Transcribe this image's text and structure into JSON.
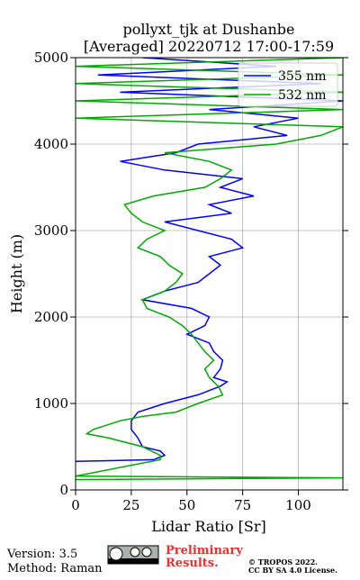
{
  "chart_data": {
    "type": "line",
    "title": [
      "pollyxt_tjk at Dushanbe",
      "[Averaged] 20220712 17:00-17:59"
    ],
    "xlabel": "Lidar Ratio [Sr]",
    "ylabel": "Height (m)",
    "xlim": [
      0,
      120
    ],
    "ylim": [
      0,
      5000
    ],
    "xticks": [
      0,
      25,
      50,
      75,
      100
    ],
    "yticks": [
      0,
      1000,
      2000,
      3000,
      4000,
      5000
    ],
    "grid": true,
    "legend": "upper right",
    "series": [
      {
        "name": "355 nm",
        "color": "#0000ff",
        "y": [
          330,
          350,
          400,
          450,
          500,
          600,
          700,
          800,
          900,
          1000,
          1100,
          1200,
          1250,
          1300,
          1400,
          1500,
          1600,
          1700,
          1800,
          1900,
          2000,
          2100,
          2200,
          2300,
          2400,
          2500,
          2600,
          2700,
          2800,
          2900,
          3000,
          3100,
          3200,
          3300,
          3400,
          3500,
          3600,
          3700,
          3800,
          3900,
          4000,
          4100,
          4200,
          4300,
          4400,
          4500,
          4600,
          4700,
          4800,
          4900,
          5000
        ],
        "x": [
          0,
          35,
          40,
          38,
          30,
          28,
          25,
          25,
          28,
          40,
          55,
          65,
          68,
          62,
          65,
          66,
          62,
          60,
          50,
          58,
          60,
          52,
          30,
          40,
          55,
          60,
          65,
          60,
          75,
          70,
          55,
          40,
          70,
          60,
          80,
          65,
          75,
          40,
          20,
          45,
          55,
          95,
          80,
          100,
          60,
          120,
          20,
          110,
          10,
          90,
          30
        ]
      },
      {
        "name": "532 nm",
        "color": "#00aa00",
        "y": [
          120,
          140,
          160,
          350,
          400,
          500,
          600,
          650,
          700,
          800,
          850,
          900,
          1000,
          1100,
          1200,
          1300,
          1400,
          1500,
          1600,
          1700,
          1800,
          1900,
          2000,
          2100,
          2200,
          2300,
          2400,
          2500,
          2600,
          2700,
          2800,
          2900,
          3000,
          3100,
          3200,
          3300,
          3400,
          3500,
          3600,
          3700,
          3800,
          3900,
          4000,
          4100,
          4200,
          4300,
          4400,
          4500,
          4600,
          4700,
          4800,
          4900,
          5000
        ],
        "x": [
          0,
          120,
          0,
          38,
          38,
          30,
          15,
          5,
          8,
          20,
          30,
          45,
          55,
          66,
          64,
          60,
          58,
          62,
          58,
          55,
          52,
          48,
          42,
          32,
          30,
          40,
          45,
          48,
          42,
          38,
          28,
          32,
          40,
          30,
          25,
          22,
          35,
          58,
          65,
          70,
          60,
          40,
          90,
          110,
          120,
          0,
          120,
          0,
          120,
          0,
          120,
          0,
          120
        ]
      }
    ]
  },
  "footer": {
    "version": "Version: 3.5",
    "method": "Method: Raman",
    "status": [
      "Preliminary",
      "Results."
    ],
    "copyright": [
      "© TROPOS 2022.",
      "CC BY SA 4.0 License."
    ]
  }
}
